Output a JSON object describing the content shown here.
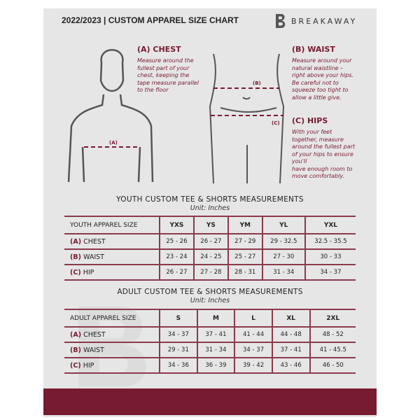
{
  "header": {
    "title": "2022/2023  |  CUSTOM APPAREL SIZE CHART",
    "brand": "BREAKAWAY",
    "brand_logo": "B"
  },
  "colors": {
    "accent": "#7a1a2e",
    "panel": "#e6e6e7"
  },
  "guide": {
    "chest": {
      "title": "(A) CHEST",
      "desc": "Measure around the\nfullest part of your\nchest, keeping the\ntape measure parallel\nto the floor",
      "marker": "(A)"
    },
    "waist": {
      "title": "(B) WAIST",
      "desc": "Measure around your\nnatural waistline –\nright above your hips.\nBe careful not to\nsqueeze too tight to\nallow a little give.",
      "marker": "(B)"
    },
    "hips": {
      "title": "(C) HIPS",
      "desc": "With your feet\ntogether, measure\naround the fullest part\nof your hips to ensure\nyou'll\nhave enough room to\nmove comfortably.",
      "marker": "(C)"
    }
  },
  "youth": {
    "title": "YOUTH CUSTOM TEE & SHORTS MEASUREMENTS",
    "unit": "Unit: Inches",
    "header": "YOUTH APPAREL SIZE",
    "sizes": [
      "YXS",
      "YS",
      "YM",
      "YL",
      "YXL"
    ],
    "rows": [
      {
        "letter": "(A)",
        "name": "CHEST",
        "values": [
          "25 - 26",
          "26 - 27",
          "27 - 29",
          "29 - 32.5",
          "32.5 - 35.5"
        ]
      },
      {
        "letter": "(B)",
        "name": "WAIST",
        "values": [
          "23 - 24",
          "24 - 25",
          "25 - 27",
          "27 - 30",
          "30 - 33"
        ]
      },
      {
        "letter": "(C)",
        "name": "HIP",
        "values": [
          "26 - 27",
          "27 - 28",
          "28 - 31",
          "31 - 34",
          "34 - 37"
        ]
      }
    ]
  },
  "adult": {
    "title": "ADULT CUSTOM TEE & SHORTS MEASUREMENTS",
    "unit": "Unit: Inches",
    "header": "ADULT APPAREL SIZE",
    "sizes": [
      "S",
      "M",
      "L",
      "XL",
      "2XL"
    ],
    "rows": [
      {
        "letter": "(A)",
        "name": "CHEST",
        "values": [
          "34 - 37",
          "37 - 41",
          "41 - 44",
          "44 - 48",
          "48 - 52"
        ]
      },
      {
        "letter": "(B)",
        "name": "WAIST",
        "values": [
          "29 - 31",
          "31 - 34",
          "34 - 37",
          "37 - 41",
          "41 - 45.5"
        ]
      },
      {
        "letter": "(C)",
        "name": "HIP",
        "values": [
          "34 - 36",
          "36 - 39",
          "39 - 42",
          "43 - 46",
          "46 - 50"
        ]
      }
    ]
  }
}
